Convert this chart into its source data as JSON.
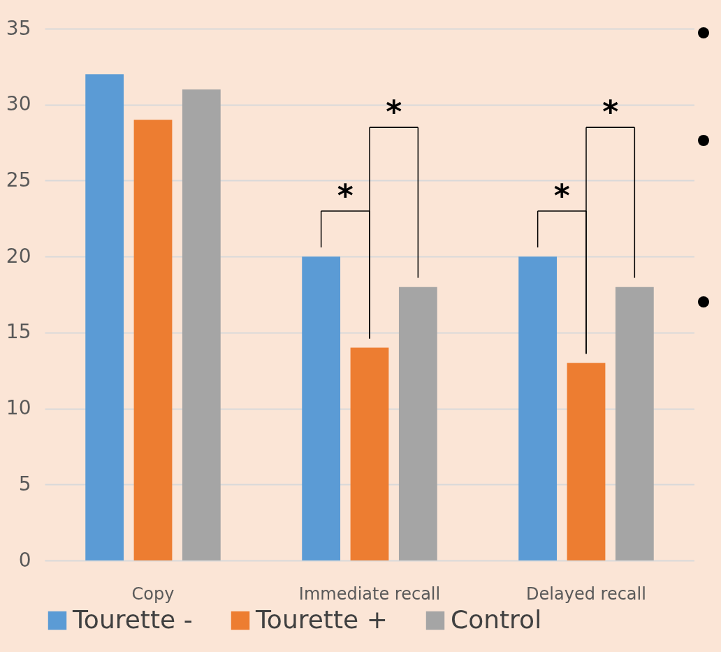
{
  "chart_data": {
    "type": "bar",
    "categories": [
      "Copy",
      "Immediate recall",
      "Delayed recall"
    ],
    "series": [
      {
        "name": "Tourette -",
        "color": "#5b9bd5",
        "values": [
          32,
          20,
          20
        ]
      },
      {
        "name": "Tourette +",
        "color": "#ed7d31",
        "values": [
          29,
          14,
          13
        ]
      },
      {
        "name": "Control",
        "color": "#a5a5a5",
        "values": [
          31,
          18,
          18
        ]
      }
    ],
    "ylim": [
      0,
      35
    ],
    "yticks": [
      0,
      5,
      10,
      15,
      20,
      25,
      30,
      35
    ],
    "grid": "y",
    "legend": "bottom",
    "annotations": [
      "*",
      "*",
      "*",
      "*"
    ]
  }
}
